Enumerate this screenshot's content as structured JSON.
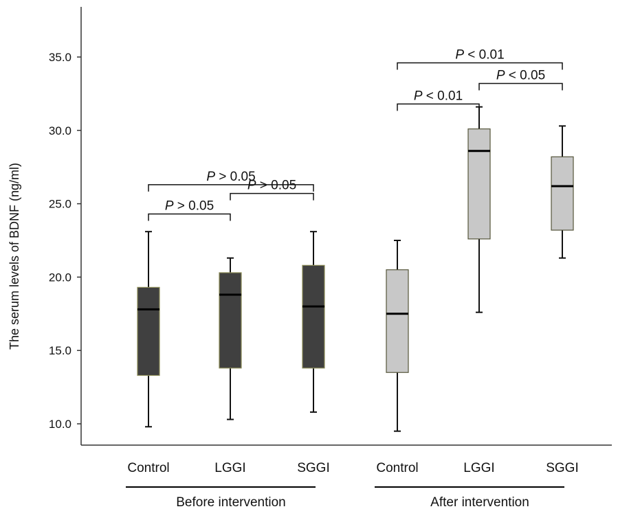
{
  "chart_data": {
    "type": "box",
    "ylabel": "The serum levels of BDNF (ng/ml)",
    "xlabel": "",
    "ylim": [
      8.5,
      37.5
    ],
    "yticks": [
      "10.0",
      "15.0",
      "20.0",
      "25.0",
      "30.0",
      "35.0"
    ],
    "ytick_values": [
      10,
      15,
      20,
      25,
      30,
      35
    ],
    "grid": false,
    "groups": [
      {
        "label": "Before intervention",
        "fill": "#404040"
      },
      {
        "label": "After intervention",
        "fill": "#c8c8c8"
      }
    ],
    "boxes": [
      {
        "category": "Control",
        "group": 0,
        "min": 9.8,
        "q1": 13.3,
        "median": 17.8,
        "q3": 19.3,
        "max": 23.1
      },
      {
        "category": "LGGI",
        "group": 0,
        "min": 10.3,
        "q1": 13.8,
        "median": 18.8,
        "q3": 20.3,
        "max": 21.3
      },
      {
        "category": "SGGI",
        "group": 0,
        "min": 10.8,
        "q1": 13.8,
        "median": 18.0,
        "q3": 20.8,
        "max": 23.1
      },
      {
        "category": "Control",
        "group": 1,
        "min": 9.5,
        "q1": 13.5,
        "median": 17.5,
        "q3": 20.5,
        "max": 22.5
      },
      {
        "category": "LGGI",
        "group": 1,
        "min": 17.6,
        "q1": 22.6,
        "median": 28.6,
        "q3": 30.1,
        "max": 31.6
      },
      {
        "category": "SGGI",
        "group": 1,
        "min": 21.3,
        "q1": 23.2,
        "median": 26.2,
        "q3": 28.2,
        "max": 30.3
      }
    ],
    "comparisons": [
      {
        "from": 0,
        "to": 1,
        "level": 24.3,
        "p_symbol": "P",
        "p_text": " > 0.05"
      },
      {
        "from": 1,
        "to": 2,
        "level": 25.7,
        "p_symbol": "P",
        "p_text": " > 0.05"
      },
      {
        "from": 0,
        "to": 2,
        "level": 26.3,
        "p_symbol": "P",
        "p_text": " > 0.05"
      },
      {
        "from": 3,
        "to": 4,
        "level": 31.8,
        "p_symbol": "P",
        "p_text": " < 0.01"
      },
      {
        "from": 4,
        "to": 5,
        "level": 33.2,
        "p_symbol": "P",
        "p_text": " < 0.05"
      },
      {
        "from": 3,
        "to": 5,
        "level": 34.6,
        "p_symbol": "P",
        "p_text": " < 0.01"
      }
    ]
  }
}
